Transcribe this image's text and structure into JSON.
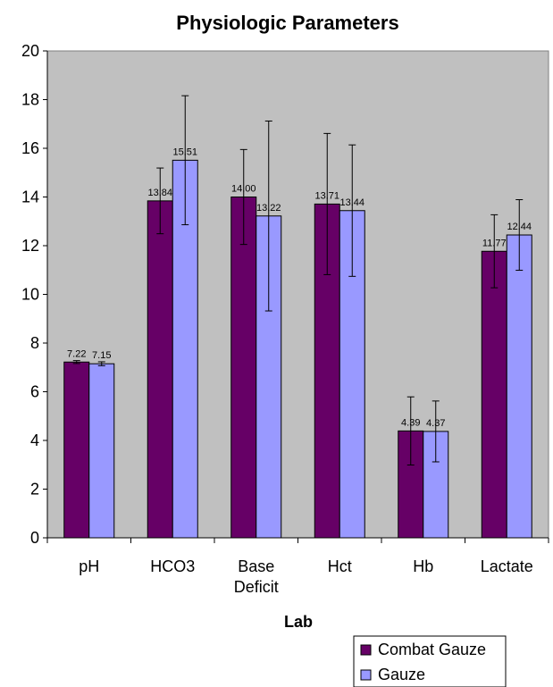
{
  "chart_data": {
    "type": "bar",
    "title": "Physiologic Parameters",
    "xlabel": "Lab",
    "ylabel": "",
    "ylim": [
      0,
      20
    ],
    "yticks": [
      0,
      2,
      4,
      6,
      8,
      10,
      12,
      14,
      16,
      18,
      20
    ],
    "grid": false,
    "legend_position": "bottom-right",
    "categories": [
      [
        "pH"
      ],
      [
        "HCO3"
      ],
      [
        "Base",
        "Deficit"
      ],
      [
        "Hct"
      ],
      [
        "Hb"
      ],
      [
        "Lactate"
      ]
    ],
    "series": [
      {
        "name": "Combat Gauze",
        "color": "#660066",
        "values": [
          7.22,
          13.84,
          14.0,
          13.71,
          4.39,
          11.77
        ],
        "labels": [
          "7.22",
          "13.84",
          "14.00",
          "13.71",
          "4.39",
          "11.77"
        ],
        "error": [
          0.06,
          1.35,
          1.95,
          2.9,
          1.4,
          1.5
        ]
      },
      {
        "name": "Gauze",
        "color": "#9999ff",
        "values": [
          7.15,
          15.51,
          13.22,
          13.44,
          4.37,
          12.44
        ],
        "labels": [
          "7.15",
          "15.51",
          "13.22",
          "13.44",
          "4.37",
          "12.44"
        ],
        "error": [
          0.08,
          2.65,
          3.9,
          2.7,
          1.25,
          1.45
        ]
      }
    ],
    "plot_area_color": "#c0c0c0"
  }
}
